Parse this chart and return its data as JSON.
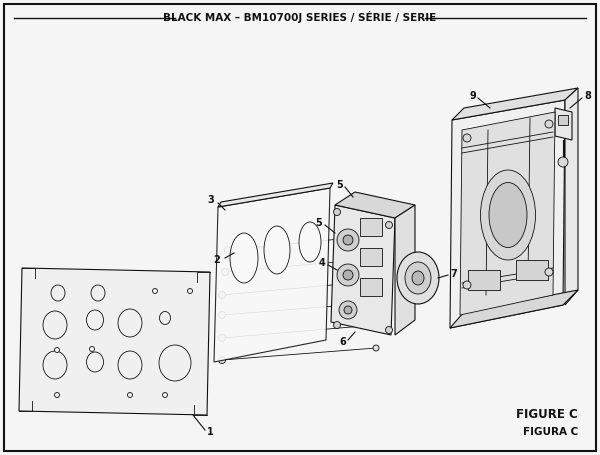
{
  "title": "BLACK MAX – BM10700J SERIES / SÉRIE / SERIE",
  "figure_label": "FIGURE C",
  "figura_label": "FIGURA C",
  "bg_color": "#f5f5f5",
  "border_color": "#111111",
  "line_color": "#111111",
  "title_fontsize": 7.5,
  "label_fontsize": 7.0,
  "fig_label_fontsize": 8.5
}
